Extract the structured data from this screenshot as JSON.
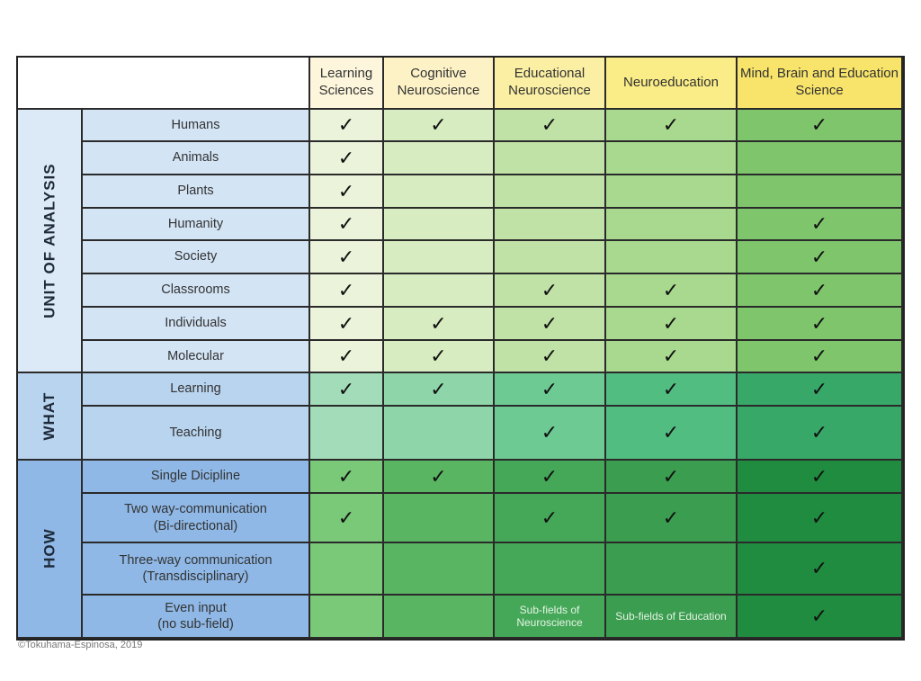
{
  "columns": [
    "Learning Sciences",
    "Cognitive Neuroscience",
    "Educational Neuroscience",
    "Neuroeducation",
    "Mind, Brain and Education Science"
  ],
  "header_colors": [
    "#fdf6dc",
    "#fdf2c6",
    "#fbefa4",
    "#faec86",
    "#f8e46a"
  ],
  "check_symbol": "✓",
  "groups": [
    {
      "label": "Unit Of Analysis",
      "color": "#dce9f7",
      "label_color": "#d3e4f5",
      "cell_colors": [
        "#ebf4da",
        "#d8ecc2",
        "#c0e2a7",
        "#a8d98f",
        "#7ec56c"
      ],
      "rows": [
        {
          "label": "Humans",
          "checks": [
            true,
            true,
            true,
            true,
            true
          ]
        },
        {
          "label": "Animals",
          "checks": [
            true,
            false,
            false,
            false,
            false
          ]
        },
        {
          "label": "Plants",
          "checks": [
            true,
            false,
            false,
            false,
            false
          ]
        },
        {
          "label": "Humanity",
          "checks": [
            true,
            false,
            false,
            false,
            true
          ]
        },
        {
          "label": "Society",
          "checks": [
            true,
            false,
            false,
            false,
            true
          ]
        },
        {
          "label": "Classrooms",
          "checks": [
            true,
            false,
            true,
            true,
            true
          ]
        },
        {
          "label": "Individuals",
          "checks": [
            true,
            true,
            true,
            true,
            true
          ]
        },
        {
          "label": "Molecular",
          "checks": [
            true,
            true,
            true,
            true,
            true
          ]
        }
      ]
    },
    {
      "label": "What",
      "color": "#b9d4ee",
      "label_color": "#b9d4ee",
      "cell_colors": [
        "#a3dcb9",
        "#8ed5a9",
        "#6dca93",
        "#52bd81",
        "#38a868"
      ],
      "rows": [
        {
          "label": "Learning",
          "checks": [
            true,
            true,
            true,
            true,
            true
          ]
        },
        {
          "label": "Teaching",
          "checks": [
            false,
            false,
            true,
            true,
            true
          ]
        }
      ]
    },
    {
      "label": "How",
      "color": "#8fb8e6",
      "label_color": "#8fb8e6",
      "cell_colors": [
        "#79c979",
        "#5ab563",
        "#45a858",
        "#3a9d4f",
        "#1f8c40"
      ],
      "rows": [
        {
          "label": "Single Dicipline",
          "checks": [
            true,
            true,
            true,
            true,
            true
          ]
        },
        {
          "label": "Two way-communication (Bi-directional)",
          "checks": [
            true,
            false,
            true,
            true,
            true
          ]
        },
        {
          "label": "Three-way communication (Transdisciplinary)",
          "checks": [
            false,
            false,
            false,
            false,
            true
          ]
        },
        {
          "label": "Even input (no sub-field)",
          "checks": [
            false,
            false,
            false,
            false,
            true
          ],
          "notes": [
            null,
            null,
            "Sub-fields of Neuroscience",
            "Sub-fields of Education",
            null
          ]
        }
      ]
    }
  ],
  "copyright": "©Tokuhama-Espinosa, 2019"
}
